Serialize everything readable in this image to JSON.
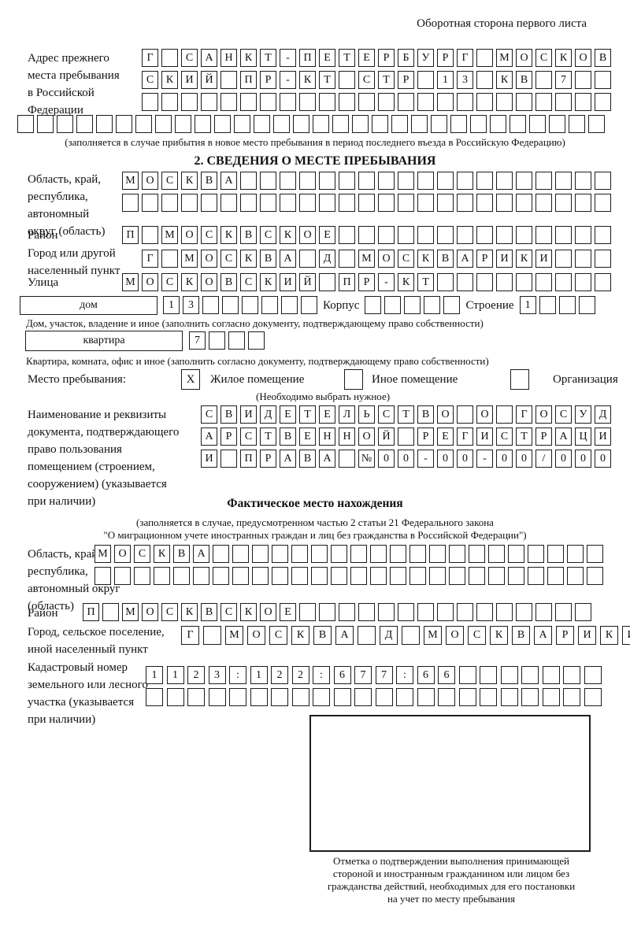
{
  "header": {
    "note": "Оборотная сторона первого листа"
  },
  "prev_address": {
    "label_lines": [
      "Адрес прежнего",
      "места пребывания",
      "в Российской",
      "Федерации"
    ],
    "row1": "Г САНКТ-ПЕТЕРБУРГ МОСКОВ",
    "row2": "СКИЙ ПР-КТ СТР 13 КВ 7  ",
    "row3": "                        ",
    "row4": "                              ",
    "caption": "(заполняется в случае прибытия в новое место пребывания в период последнего въезда в Российскую Федерацию)"
  },
  "section2": {
    "title": "2. СВЕДЕНИЯ О МЕСТЕ ПРЕБЫВАНИЯ",
    "oblast": {
      "label_lines": [
        "Область, край,",
        "республика,",
        "автономный",
        "округ (область)"
      ],
      "row1": "МОСКВА                   ",
      "row2": "                         "
    },
    "raion": {
      "label": "Район",
      "row": "П МОСКВСКОЕ              "
    },
    "gorod": {
      "label_lines": [
        "Город или другой",
        "населенный пункт"
      ],
      "row": "Г МОСКВА Д МОСКВАРИКИ   "
    },
    "ulitsa": {
      "label": "Улица",
      "row": "МОСКОВСКИЙ ПР-КТ         "
    },
    "dom": {
      "box_label": "дом",
      "cells": "13      ",
      "korpus_label": "Корпус",
      "korpus_cells": "     ",
      "stroenie_label": "Строение",
      "stroenie_cells": "1   ",
      "caption": "Дом, участок, владение и иное (заполнить согласно документу, подтверждающему право собственности)"
    },
    "kvartira": {
      "box_label": "квартира",
      "cells": "7   ",
      "caption": "Квартира, комната, офис и иное (заполнить согласно документу, подтверждающему право собственности)"
    },
    "mesto": {
      "label": "Место пребывания:",
      "zhiloe_mark": "X",
      "zhiloe_label": "Жилое помещение",
      "inoe_mark": " ",
      "inoe_label": "Иное помещение",
      "org_mark": " ",
      "org_label": "Организация",
      "note": "(Необходимо выбрать нужное)"
    },
    "doc": {
      "label_lines": [
        "Наименование и реквизиты",
        "документа, подтверждающего",
        "право пользования",
        "помещением (строением,",
        "сооружением) (указывается",
        "при наличии)"
      ],
      "row1": "СВИДЕТЕЛЬСТВО О ГОСУД",
      "row2": "АРСТВЕННОЙ РЕГИСТРАЦИ",
      "row3": "И ПРАВА №00-00-00/000"
    }
  },
  "fact": {
    "title": "Фактическое место нахождения",
    "note_lines": [
      "(заполняется в случае, предусмотренном частью 2 статьи 21 Федерального закона",
      "\"О миграционном учете иностранных граждан и лиц без гражданства в Российской Федерации\")"
    ],
    "oblast": {
      "label_lines": [
        "Область, край,",
        "республика,",
        "автономный округ",
        "(область)"
      ],
      "row1": "МОСКВА                    ",
      "row2": "                          "
    },
    "raion": {
      "label": "Район",
      "row": "П МОСКВСКОЕ               "
    },
    "gorod": {
      "label_lines": [
        "Город, сельское поселение,",
        "иной населенный пункт"
      ],
      "row": "Г МОСКВА Д МОСКВАРИКИ "
    },
    "kadastr": {
      "label_lines": [
        "Кадастровый номер",
        "земельного или лесного",
        "участка (указывается",
        "при наличии)"
      ],
      "row1": "1123:122:677:66       ",
      "row2": "                      "
    },
    "stamp_caption_lines": [
      "Отметка о подтверждении выполнения принимающей",
      "стороной и иностранным гражданином или лицом без",
      "гражданства действий, необходимых для его постановки",
      "на учет по месту пребывания"
    ]
  }
}
